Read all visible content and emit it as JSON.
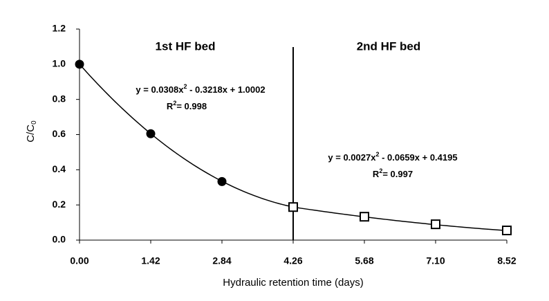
{
  "chart_data": {
    "type": "scatter",
    "x_label": "Hydraulic retention time (days)",
    "y_label": [
      "C/C",
      "0"
    ],
    "xlim": [
      0,
      8.52
    ],
    "xticks": [
      {
        "value": 0,
        "label": "0.00"
      },
      1.42,
      2.84,
      4.26,
      5.68,
      {
        "value": 7.1,
        "label": "7.10"
      },
      8.52
    ],
    "ylim": [
      0,
      1.2
    ],
    "yticks": [
      {
        "value": 0,
        "label": "0.0"
      },
      0.2,
      0.4,
      0.6,
      0.8,
      {
        "value": 1,
        "label": "1.0"
      },
      1.2
    ],
    "series": [
      {
        "label": "1st HF bed",
        "color": "#000000",
        "marker": "circle",
        "x": [
          0,
          1.42,
          2.84
        ],
        "values": [
          1.0,
          0.605,
          0.333
        ],
        "fit": [
          0.0308,
          -0.3218,
          1.0002
        ],
        "equation": [
          "y = 0.0308x",
          "2",
          " - 0.3218x + 1.0002"
        ],
        "r2": [
          "R",
          "2",
          "= 0.998"
        ]
      },
      {
        "label": "2nd HF bed",
        "color": "#000000",
        "marker": "square",
        "x": [
          4.26,
          5.68,
          7.1,
          8.52
        ],
        "values": [
          0.188,
          0.133,
          0.09,
          0.055
        ],
        "fit": [
          0.0027,
          -0.0659,
          0.4195
        ],
        "equation": [
          "y = 0.0027x",
          "2",
          " - 0.0659x + 0.4195"
        ],
        "r2": [
          "R",
          "2",
          "= 0.997"
        ]
      }
    ]
  }
}
